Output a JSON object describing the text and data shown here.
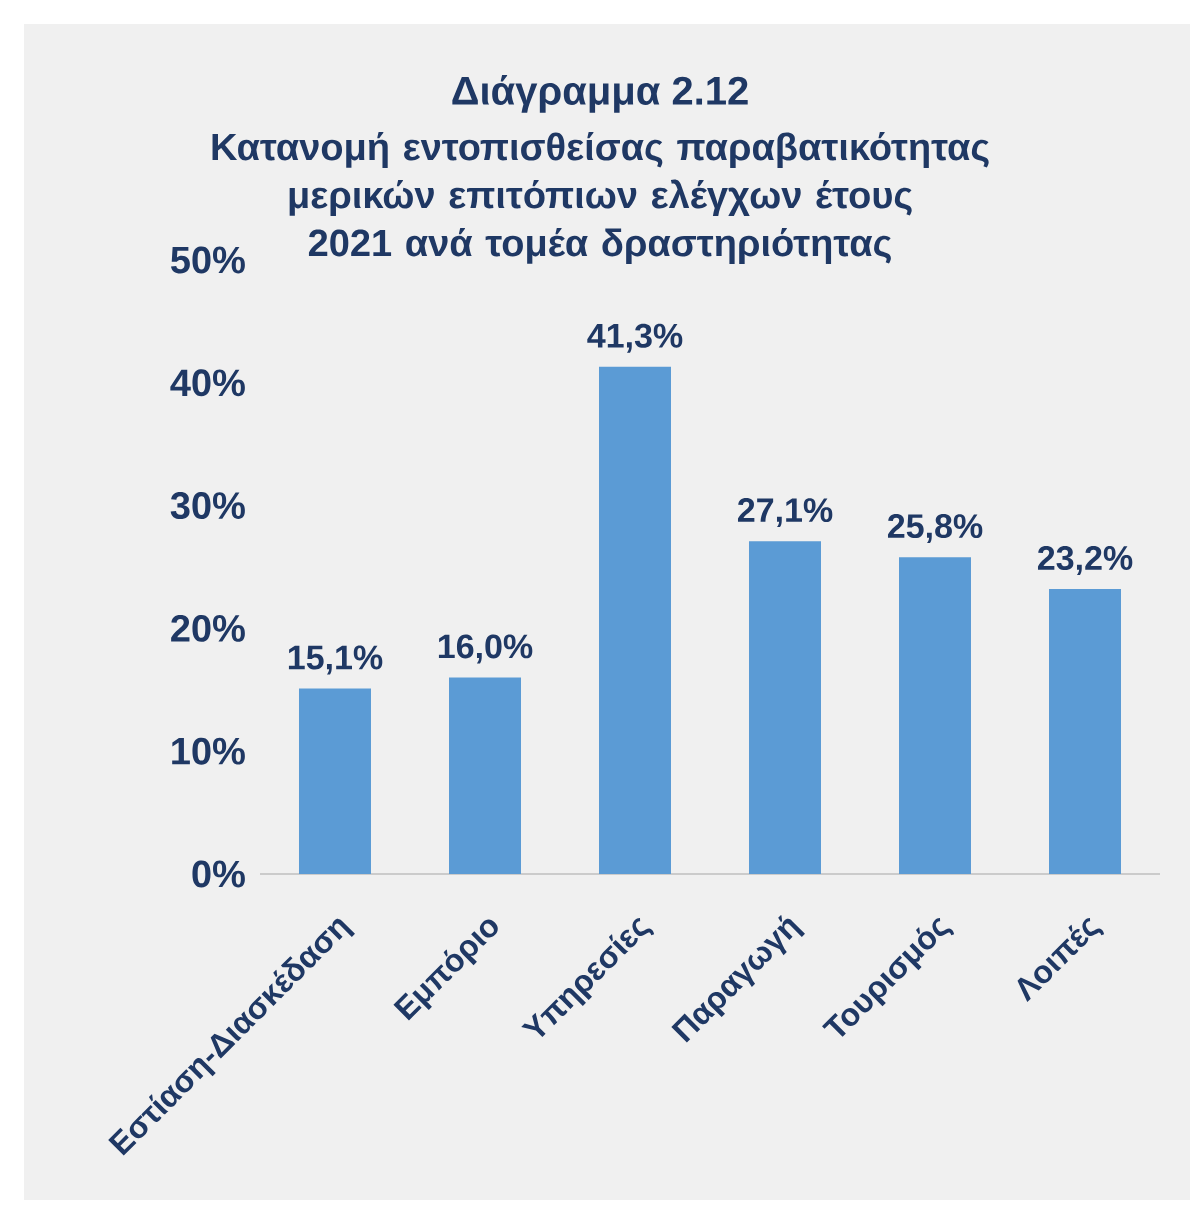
{
  "chart_data": {
    "type": "bar",
    "title": "Διάγραμμα 2.12",
    "subtitle": "Κατανομή εντοπισθείσας παραβατικότητας μερικών επιτόπιων ελέγχων έτους 2021 ανά τομέα δραστηριότητας",
    "categories": [
      "Εστίαση-Διασκέδαση",
      "Εμπόριο",
      "Υπηρεσίες",
      "Παραγωγή",
      "Τουρισμός",
      "Λοιπές"
    ],
    "values": [
      15.1,
      16.0,
      41.3,
      27.1,
      25.8,
      23.2
    ],
    "value_labels": [
      "15,1%",
      "16,0%",
      "41,3%",
      "27,1%",
      "25,8%",
      "23,2%"
    ],
    "color": "#5b9bd5",
    "ylim": [
      0,
      50
    ],
    "yticks": [
      {
        "value": 0,
        "label": "0%"
      },
      {
        "value": 10,
        "label": "10%"
      },
      {
        "value": 20,
        "label": "20%"
      },
      {
        "value": 30,
        "label": "30%"
      },
      {
        "value": 40,
        "label": "40%"
      },
      {
        "value": 50,
        "label": "50%"
      }
    ],
    "grid": false
  }
}
